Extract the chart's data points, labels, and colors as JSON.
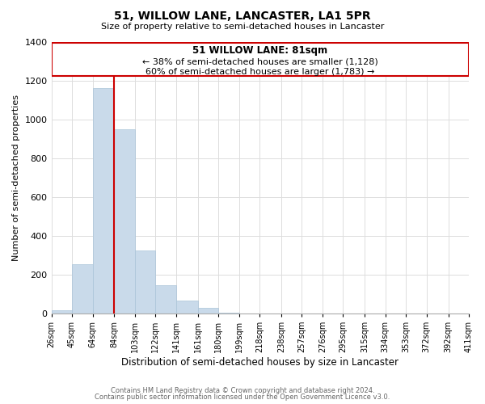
{
  "title": "51, WILLOW LANE, LANCASTER, LA1 5PR",
  "subtitle": "Size of property relative to semi-detached houses in Lancaster",
  "xlabel": "Distribution of semi-detached houses by size in Lancaster",
  "ylabel": "Number of semi-detached properties",
  "bar_color": "#c9daea",
  "property_line_color": "#cc0000",
  "property_label": "51 WILLOW LANE: 81sqm",
  "smaller_pct": 38,
  "smaller_count": 1128,
  "larger_pct": 60,
  "larger_count": 1783,
  "bin_edges": [
    26,
    45,
    64,
    84,
    103,
    122,
    141,
    161,
    180,
    199,
    218,
    238,
    257,
    276,
    295,
    315,
    334,
    353,
    372,
    392,
    411
  ],
  "bin_counts": [
    15,
    255,
    1160,
    950,
    325,
    145,
    65,
    28,
    5,
    0,
    0,
    0,
    0,
    0,
    0,
    0,
    0,
    0,
    0,
    0
  ],
  "ylim": [
    0,
    1400
  ],
  "yticks": [
    0,
    200,
    400,
    600,
    800,
    1000,
    1200,
    1400
  ],
  "tick_labels": [
    "26sqm",
    "45sqm",
    "64sqm",
    "84sqm",
    "103sqm",
    "122sqm",
    "141sqm",
    "161sqm",
    "180sqm",
    "199sqm",
    "218sqm",
    "238sqm",
    "257sqm",
    "276sqm",
    "295sqm",
    "315sqm",
    "334sqm",
    "353sqm",
    "372sqm",
    "392sqm",
    "411sqm"
  ],
  "footnote1": "Contains HM Land Registry data © Crown copyright and database right 2024.",
  "footnote2": "Contains public sector information licensed under the Open Government Licence v3.0.",
  "background_color": "#ffffff",
  "grid_color": "#dddddd"
}
